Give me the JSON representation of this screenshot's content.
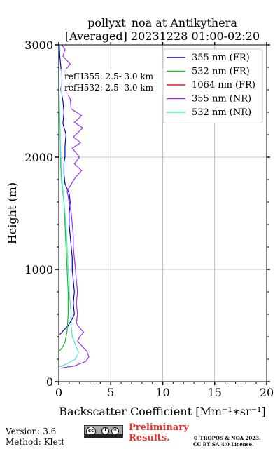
{
  "chart_data": {
    "type": "line",
    "title_line1": "pollyxt_noa at Antikythera",
    "title_line2": "[Averaged] 20231228 01:00-02:20",
    "xlabel": "Backscatter Coefficient [Mm⁻¹∗sr⁻¹]",
    "ylabel": "Height (m)",
    "xlim": [
      0,
      20
    ],
    "ylim": [
      0,
      3000
    ],
    "x_ticks": [
      0,
      5,
      10,
      15,
      20
    ],
    "y_ticks": [
      0,
      1000,
      2000,
      3000
    ],
    "grid": true,
    "legend_position": "top-right",
    "annotations": [
      "refH355:  2.5- 3.0 km",
      "refH532:  2.5- 3.0 km"
    ],
    "series": [
      {
        "name": "355 nm (FR)",
        "color": "#0000dd",
        "points": [
          [
            0.1,
            420
          ],
          [
            0.4,
            450
          ],
          [
            0.9,
            500
          ],
          [
            1.3,
            560
          ],
          [
            1.5,
            600
          ],
          [
            1.4,
            700
          ],
          [
            1.5,
            800
          ],
          [
            1.4,
            900
          ],
          [
            1.3,
            1000
          ],
          [
            1.3,
            1100
          ],
          [
            1.2,
            1200
          ],
          [
            1.1,
            1300
          ],
          [
            1.0,
            1400
          ],
          [
            1.0,
            1500
          ],
          [
            1.1,
            1600
          ],
          [
            1.0,
            1680
          ],
          [
            0.6,
            1760
          ],
          [
            0.5,
            1850
          ],
          [
            0.5,
            1950
          ],
          [
            0.6,
            2000
          ],
          [
            0.6,
            2100
          ],
          [
            0.7,
            2200
          ],
          [
            0.4,
            2300
          ],
          [
            0.5,
            2400
          ],
          [
            0.4,
            2500
          ],
          [
            0.2,
            2600
          ],
          [
            0.3,
            2700
          ],
          [
            0.2,
            2800
          ],
          [
            0.1,
            2900
          ],
          [
            0.05,
            3000
          ]
        ]
      },
      {
        "name": "532 nm (FR)",
        "color": "#22bb22",
        "points": [
          [
            0.05,
            270
          ],
          [
            0.3,
            300
          ],
          [
            0.6,
            350
          ],
          [
            0.8,
            450
          ],
          [
            0.9,
            600
          ],
          [
            0.9,
            800
          ],
          [
            0.8,
            1000
          ],
          [
            0.7,
            1200
          ],
          [
            0.6,
            1400
          ],
          [
            0.5,
            1600
          ],
          [
            0.3,
            1750
          ],
          [
            0.2,
            1900
          ],
          [
            0.15,
            2100
          ],
          [
            0.1,
            2300
          ],
          [
            0.05,
            2500
          ],
          [
            0.0,
            2700
          ],
          [
            0.0,
            3000
          ]
        ]
      },
      {
        "name": "1064 nm (FR)",
        "color": "#dd2222",
        "points": []
      },
      {
        "name": "355 nm (NR)",
        "color": "#9933ff",
        "points": [
          [
            0.1,
            120
          ],
          [
            1.5,
            140
          ],
          [
            2.6,
            180
          ],
          [
            2.9,
            220
          ],
          [
            2.7,
            270
          ],
          [
            2.2,
            320
          ],
          [
            1.8,
            360
          ],
          [
            2.0,
            400
          ],
          [
            2.4,
            440
          ],
          [
            2.1,
            470
          ],
          [
            1.7,
            520
          ],
          [
            1.8,
            600
          ],
          [
            1.7,
            700
          ],
          [
            1.8,
            800
          ],
          [
            1.7,
            900
          ],
          [
            1.6,
            1000
          ],
          [
            1.5,
            1100
          ],
          [
            1.4,
            1200
          ],
          [
            1.4,
            1300
          ],
          [
            1.3,
            1400
          ],
          [
            1.2,
            1500
          ],
          [
            1.0,
            1600
          ],
          [
            0.8,
            1700
          ],
          [
            1.2,
            1760
          ],
          [
            1.6,
            1820
          ],
          [
            2.2,
            1880
          ],
          [
            1.5,
            1940
          ],
          [
            2.0,
            2000
          ],
          [
            1.3,
            2080
          ],
          [
            2.1,
            2130
          ],
          [
            1.4,
            2180
          ],
          [
            2.3,
            2260
          ],
          [
            1.5,
            2310
          ],
          [
            2.2,
            2370
          ],
          [
            1.2,
            2430
          ],
          [
            1.1,
            2520
          ],
          [
            0.6,
            2600
          ],
          [
            1.3,
            2680
          ],
          [
            0.5,
            2760
          ],
          [
            1.1,
            2830
          ],
          [
            0.4,
            2900
          ],
          [
            0.6,
            2960
          ],
          [
            0.3,
            3000
          ]
        ]
      },
      {
        "name": "532 nm (NR)",
        "color": "#44eecc",
        "points": [
          [
            0.0,
            130
          ],
          [
            0.8,
            160
          ],
          [
            1.6,
            200
          ],
          [
            1.9,
            260
          ],
          [
            1.6,
            330
          ],
          [
            1.3,
            400
          ],
          [
            1.2,
            500
          ],
          [
            1.2,
            600
          ],
          [
            1.1,
            700
          ],
          [
            1.0,
            800
          ],
          [
            1.0,
            900
          ],
          [
            0.9,
            1000
          ],
          [
            0.8,
            1200
          ],
          [
            0.7,
            1400
          ],
          [
            0.5,
            1600
          ],
          [
            0.3,
            1800
          ],
          [
            0.2,
            2000
          ],
          [
            0.1,
            2200
          ],
          [
            0.05,
            2400
          ],
          [
            0.0,
            2600
          ],
          [
            0.0,
            3000
          ]
        ]
      }
    ]
  },
  "footer": {
    "version": "Version: 3.6",
    "method": "Method: Klett",
    "preliminary_line1": "Preliminary",
    "preliminary_line2": "Results.",
    "copyright_line1": "© TROPOS & NOA 2023.",
    "copyright_line2": "CC BY SA 4.0 License.",
    "license_badge": "cc BY SA"
  }
}
